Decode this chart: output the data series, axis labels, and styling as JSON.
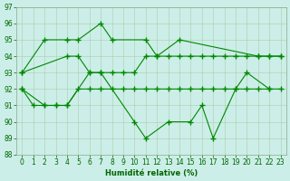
{
  "background": "#cceee8",
  "line_color": "#008800",
  "grid_color": "#aaccaa",
  "xlabel": "Humidité relative (%)",
  "ylim": [
    88,
    97
  ],
  "yticks": [
    88,
    89,
    90,
    91,
    92,
    93,
    94,
    95,
    96,
    97
  ],
  "xticks": [
    0,
    1,
    2,
    3,
    4,
    5,
    6,
    7,
    8,
    9,
    10,
    11,
    12,
    13,
    14,
    15,
    16,
    17,
    18,
    19,
    20,
    21,
    22,
    23
  ],
  "line_top_x": [
    0,
    2,
    4,
    5,
    7,
    8,
    11,
    12,
    14,
    21,
    22,
    23
  ],
  "line_top_y": [
    93,
    95,
    95,
    95,
    96,
    95,
    95,
    94,
    95,
    94,
    94,
    94
  ],
  "line_upper_x": [
    0,
    4,
    5,
    6,
    7,
    8,
    9,
    10,
    11,
    12,
    13,
    14,
    15,
    16,
    17,
    18,
    19,
    20,
    21,
    22,
    23
  ],
  "line_upper_y": [
    93,
    94,
    94,
    93,
    93,
    93,
    93,
    93,
    94,
    94,
    94,
    94,
    94,
    94,
    94,
    94,
    94,
    94,
    94,
    94,
    94
  ],
  "line_lower_x": [
    0,
    1,
    2,
    3,
    4,
    5,
    6,
    7,
    8,
    9,
    10,
    11,
    12,
    13,
    14,
    15,
    16,
    17,
    18,
    19,
    20,
    21,
    22,
    23
  ],
  "line_lower_y": [
    92,
    91,
    91,
    91,
    91,
    92,
    92,
    92,
    92,
    92,
    92,
    92,
    92,
    92,
    92,
    92,
    92,
    92,
    92,
    92,
    92,
    92,
    92,
    92
  ],
  "line_bot_x": [
    0,
    2,
    3,
    4,
    6,
    7,
    10,
    11,
    13,
    15,
    16,
    17,
    19,
    20,
    22
  ],
  "line_bot_y": [
    92,
    91,
    91,
    91,
    93,
    93,
    90,
    89,
    90,
    90,
    91,
    89,
    92,
    93,
    92
  ]
}
